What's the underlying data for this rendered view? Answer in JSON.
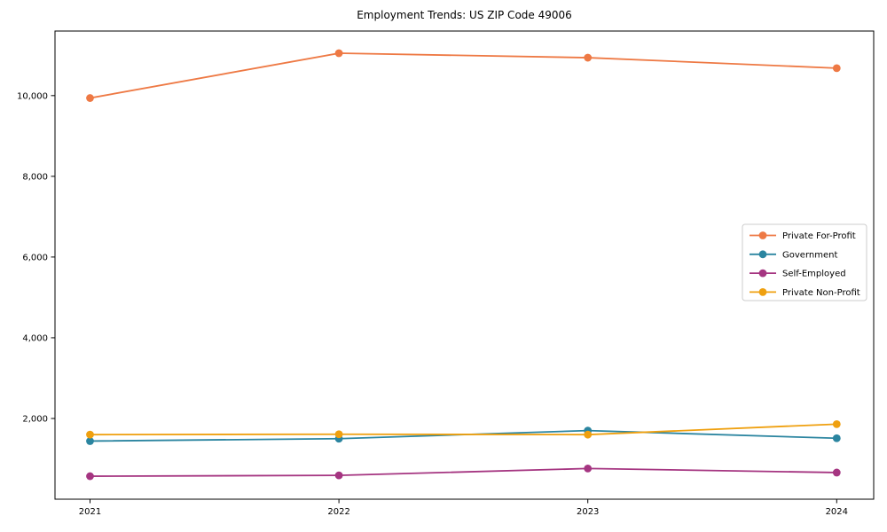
{
  "title": "Employment Trends: US ZIP Code 49006",
  "axes": {
    "y_tick_labels": [
      "2,000",
      "4,000",
      "6,000",
      "8,000",
      "10,000"
    ],
    "x_tick_labels": [
      "2021",
      "2022",
      "2023",
      "2024"
    ]
  },
  "legend": {
    "position": "center right",
    "entries": [
      "Private For-Profit",
      "Government",
      "Self-Employed",
      "Private Non-Profit"
    ]
  },
  "colors": {
    "axis": "#000000",
    "legend_border": "#cccccc",
    "background": "#ffffff",
    "private_for_profit": "#ee7944",
    "government": "#2b85a0",
    "self_employed": "#a53581",
    "private_non_profit": "#efa00f"
  },
  "chart_data": {
    "type": "line",
    "title": "Employment Trends: US ZIP Code 49006",
    "xlabel": "",
    "ylabel": "",
    "x": [
      2021,
      2022,
      2023,
      2024
    ],
    "categories": [
      "2021",
      "2022",
      "2023",
      "2024"
    ],
    "series": [
      {
        "name": "Private For-Profit",
        "color": "#ee7944",
        "values": [
          9940,
          11050,
          10940,
          10680
        ]
      },
      {
        "name": "Government",
        "color": "#2b85a0",
        "values": [
          1440,
          1500,
          1700,
          1510
        ]
      },
      {
        "name": "Self-Employed",
        "color": "#a53581",
        "values": [
          570,
          590,
          760,
          660
        ]
      },
      {
        "name": "Private Non-Profit",
        "color": "#efa00f",
        "values": [
          1600,
          1610,
          1600,
          1860
        ]
      }
    ],
    "ylim": [
      0,
      11600
    ],
    "yticks": [
      2000,
      4000,
      6000,
      8000,
      10000
    ],
    "ytick_labels": [
      "2,000",
      "4,000",
      "6,000",
      "8,000",
      "10,000"
    ],
    "grid": false,
    "marker": "o",
    "legend_position": "center right"
  }
}
